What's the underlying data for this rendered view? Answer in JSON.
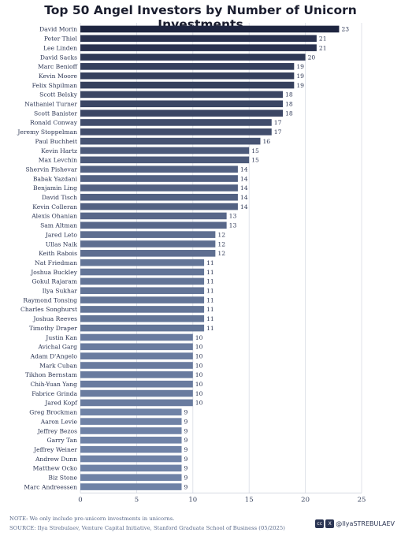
{
  "chart_data": {
    "type": "bar",
    "orientation": "horizontal",
    "title": "Top 50 Angel Investors by Number of Unicorn Investments",
    "categories": [
      "David Morin",
      "Peter Thiel",
      "Lee Linden",
      "David Sacks",
      "Marc Benioff",
      "Kevin Moore",
      "Felix Shpilman",
      "Scott Belsky",
      "Nathaniel Turner",
      "Scott Banister",
      "Ronald Conway",
      "Jeremy Stoppelman",
      "Paul Buchheit",
      "Kevin Hartz",
      "Max Levchin",
      "Shervin Pishevar",
      "Babak Yazdani",
      "Benjamin Ling",
      "David Tisch",
      "Kevin Colleran",
      "Alexis Ohanian",
      "Sam Altman",
      "Jared Leto",
      "Ullas Naik",
      "Keith Rabois",
      "Nat Friedman",
      "Joshua Buckley",
      "Gokul Rajaram",
      "Ilya Sukhar",
      "Raymond Tonsing",
      "Charles Songhurst",
      "Joshua Reeves",
      "Timothy Draper",
      "Justin Kan",
      "Avichal Garg",
      "Adam D'Angelo",
      "Mark Cuban",
      "Tikhon Bernstam",
      "Chih-Yuan Yang",
      "Fabrice Grinda",
      "Jared Kopf",
      "Greg Brockman",
      "Aaron Levie",
      "Jeffrey Bezos",
      "Garry Tan",
      "Jeffrey Weiner",
      "Andrew Dunn",
      "Matthew Ocko",
      "Biz Stone",
      "Marc Andreessen"
    ],
    "values": [
      23,
      21,
      21,
      20,
      19,
      19,
      19,
      18,
      18,
      18,
      17,
      17,
      16,
      15,
      15,
      14,
      14,
      14,
      14,
      14,
      13,
      13,
      12,
      12,
      12,
      11,
      11,
      11,
      11,
      11,
      11,
      11,
      11,
      10,
      10,
      10,
      10,
      10,
      10,
      10,
      10,
      9,
      9,
      9,
      9,
      9,
      9,
      9,
      9,
      9
    ],
    "xlim": [
      0,
      25
    ],
    "xticks": [
      0,
      5,
      10,
      15,
      20,
      25
    ],
    "grid": true,
    "colors": {
      "max": "#1e2540",
      "min": "#6f82a6"
    }
  },
  "footer": {
    "note": "NOTE: We only include pre-unicorn investments in unicorns.",
    "source": "SOURCE: Ilya Strebulaev, Venture Capital Initiative, Stanford Graduate School of Business (05/2025)",
    "handle": "@IlyaSTREBULAEV",
    "cc_label": "cc"
  }
}
